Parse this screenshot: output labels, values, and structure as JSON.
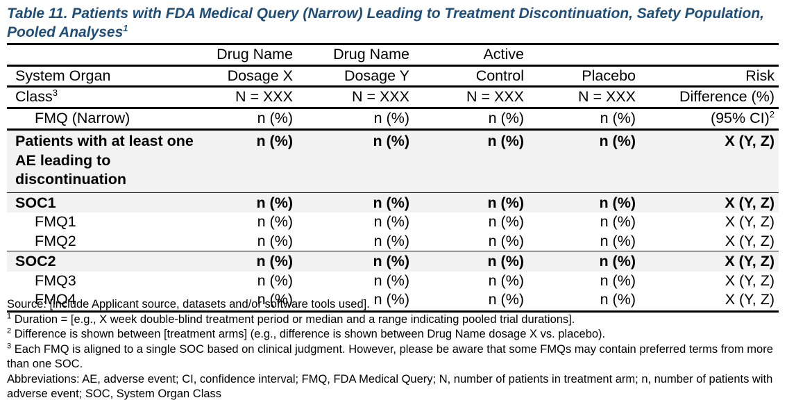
{
  "title": {
    "text": "Table 11. Patients with FDA Medical Query (Narrow) Leading to Treatment Discontinuation, Safety Population, Pooled Analyses",
    "sup": "1"
  },
  "header": {
    "col0": {
      "line1": "System Organ",
      "line2": "Class",
      "sup": "3",
      "sub": "FMQ (Narrow)"
    },
    "columns": [
      {
        "line1": "Drug Name",
        "line2": "Dosage X",
        "n": "N = XXX",
        "unit": "n (%)"
      },
      {
        "line1": "Drug Name",
        "line2": "Dosage Y",
        "n": "N = XXX",
        "unit": "n (%)"
      },
      {
        "line1": "Active",
        "line2": "Control",
        "n": "N = XXX",
        "unit": "n (%)"
      },
      {
        "line1": "",
        "line2": "Placebo",
        "n": "N = XXX",
        "unit": "n (%)"
      },
      {
        "line1": "",
        "line2": "Risk",
        "n": "Difference (%)",
        "unit": "(95% CI)",
        "sup": "2"
      }
    ]
  },
  "overall": {
    "label": "Patients with at least one AE leading to discontinuation",
    "values": [
      "n (%)",
      "n (%)",
      "n (%)",
      "n (%)",
      "X (Y, Z)"
    ]
  },
  "groups": [
    {
      "label": "SOC1",
      "values": [
        "n (%)",
        "n (%)",
        "n (%)",
        "n (%)",
        "X (Y, Z)"
      ],
      "rows": [
        {
          "label": "FMQ1",
          "values": [
            "n (%)",
            "n (%)",
            "n (%)",
            "n (%)",
            "X (Y, Z)"
          ]
        },
        {
          "label": "FMQ2",
          "values": [
            "n (%)",
            "n (%)",
            "n (%)",
            "n (%)",
            "X (Y, Z)"
          ]
        }
      ]
    },
    {
      "label": "SOC2",
      "values": [
        "n (%)",
        "n (%)",
        "n (%)",
        "n (%)",
        "X (Y, Z)"
      ],
      "rows": [
        {
          "label": "FMQ3",
          "values": [
            "n (%)",
            "n (%)",
            "n (%)",
            "n (%)",
            "X (Y, Z)"
          ]
        },
        {
          "label": "FMQ4",
          "values": [
            "n (%)",
            "n (%)",
            "n (%)",
            "n (%)",
            "X (Y, Z)"
          ]
        }
      ]
    }
  ],
  "footnotes": {
    "source": "Source: [include Applicant source, datasets and/or software tools used].",
    "note1": {
      "sup": "1",
      "text": "Duration = [e.g., X week double-blind treatment period or median and a range indicating pooled trial durations]."
    },
    "note2": {
      "sup": "2",
      "text": "Difference is shown between [treatment arms] (e.g., difference is shown between Drug Name dosage X vs. placebo)."
    },
    "note3": {
      "sup": "3",
      "text": "Each FMQ is aligned to a single SOC based on clinical judgment. However, please be aware that some FMQs may contain preferred terms from more than one SOC."
    },
    "abbreviations": "Abbreviations: AE, adverse event; CI, confidence interval; FMQ, FDA Medical Query; N, number of patients in treatment arm; n, number of patients with adverse event; SOC, System Organ Class"
  },
  "colors": {
    "title": "#1f4e79",
    "shade": "#f2f2f2"
  }
}
